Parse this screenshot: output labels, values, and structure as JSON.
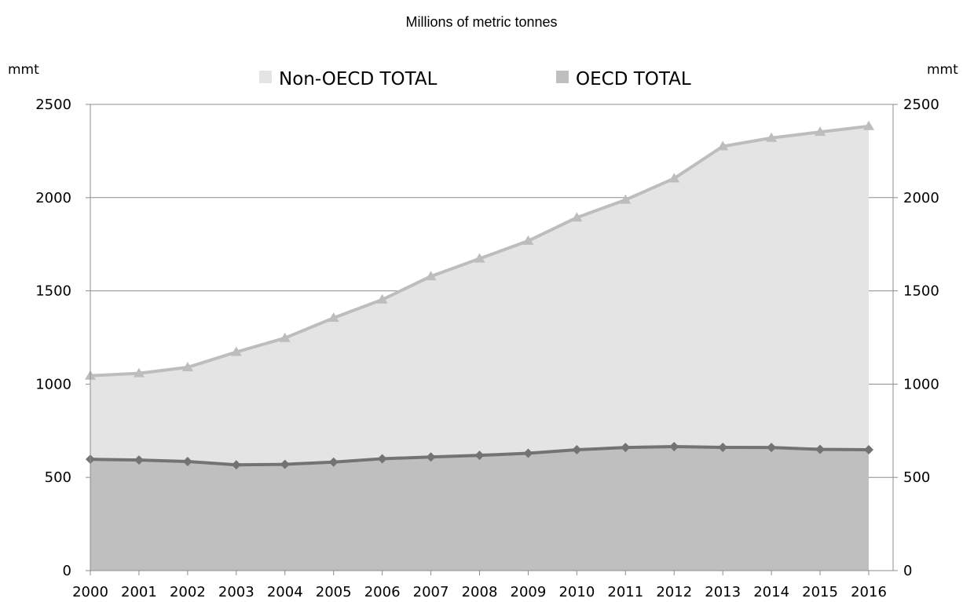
{
  "chart_data": {
    "type": "area",
    "title": "Millions of metric tonnes",
    "y_unit_left": "mmt",
    "y_unit_right": "mmt",
    "categories": [
      "2000",
      "2001",
      "2002",
      "2003",
      "2004",
      "2005",
      "2006",
      "2007",
      "2008",
      "2009",
      "2010",
      "2011",
      "2012",
      "2013",
      "2014",
      "2015",
      "2016"
    ],
    "ylim": [
      0,
      2500
    ],
    "yticks": [
      0,
      500,
      1000,
      1500,
      2000,
      2500
    ],
    "grid": true,
    "legend_position": "top",
    "series": [
      {
        "name": "Non-OECD TOTAL",
        "values": [
          1045,
          1058,
          1090,
          1172,
          1247,
          1355,
          1453,
          1578,
          1673,
          1768,
          1893,
          1988,
          2103,
          2275,
          2320,
          2352,
          2383
        ],
        "fill_color": "#e4e4e4",
        "line_color": "#bdbdbd",
        "marker": "triangle"
      },
      {
        "name": "OECD TOTAL",
        "values": [
          597,
          593,
          585,
          567,
          570,
          582,
          600,
          609,
          618,
          629,
          648,
          660,
          665,
          661,
          660,
          650,
          648
        ],
        "fill_color": "#bfbfbf",
        "line_color": "#737373",
        "marker": "diamond"
      }
    ]
  }
}
